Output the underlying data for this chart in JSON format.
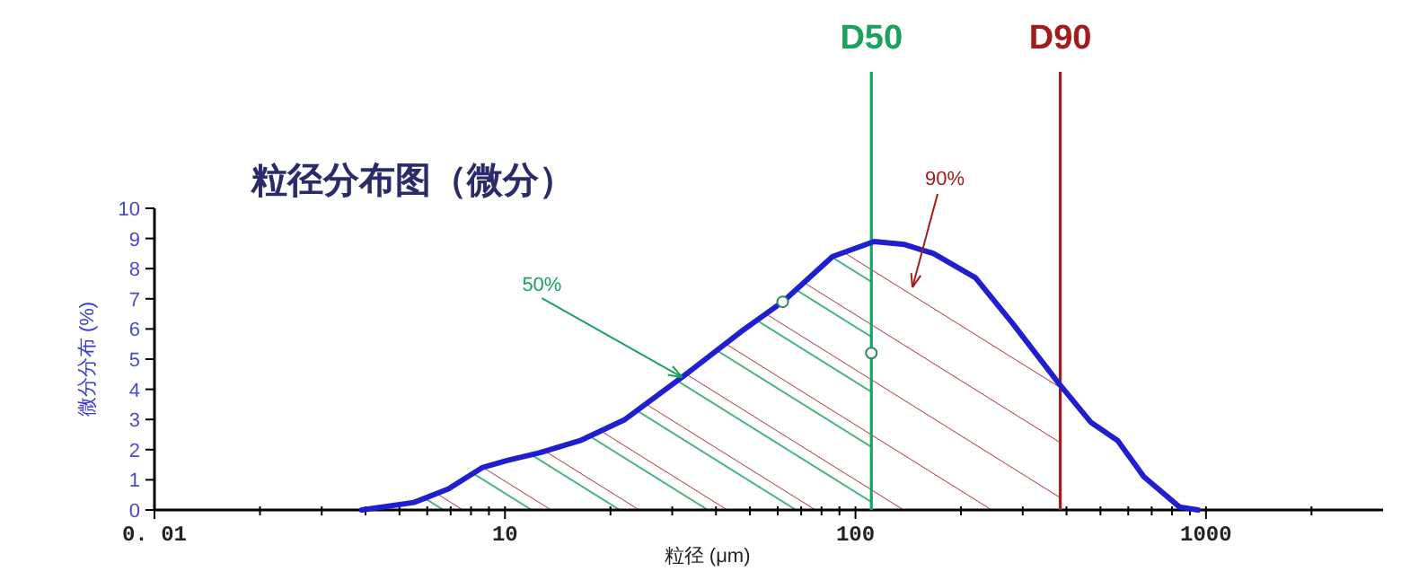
{
  "chart_data": {
    "type": "line",
    "title": "粒径分布图（微分）",
    "xlabel": "粒径 (μm)",
    "ylabel": "微分分布 (%)",
    "log": "x",
    "xlim": [
      1,
      3200
    ],
    "ylim": [
      0,
      10
    ],
    "xticks": [
      {
        "value": 1,
        "label": "0. 01"
      },
      {
        "value": 2,
        "label": null
      },
      {
        "value": 3,
        "label": null
      },
      {
        "value": 4,
        "label": null
      },
      {
        "value": 5,
        "label": null
      },
      {
        "value": 6,
        "label": null
      },
      {
        "value": 7,
        "label": null
      },
      {
        "value": 8,
        "label": null
      },
      {
        "value": 9,
        "label": null
      },
      10,
      {
        "value": 20,
        "label": null
      },
      {
        "value": 30,
        "label": null
      },
      {
        "value": 40,
        "label": null
      },
      {
        "value": 50,
        "label": null
      },
      {
        "value": 60,
        "label": null
      },
      {
        "value": 70,
        "label": null
      },
      {
        "value": 80,
        "label": null
      },
      {
        "value": 90,
        "label": null
      },
      100,
      {
        "value": 200,
        "label": null
      },
      {
        "value": 300,
        "label": null
      },
      {
        "value": 400,
        "label": null
      },
      {
        "value": 500,
        "label": null
      },
      {
        "value": 600,
        "label": null
      },
      {
        "value": 700,
        "label": null
      },
      {
        "value": 800,
        "label": null
      },
      {
        "value": 900,
        "label": null
      },
      1000,
      {
        "value": 2000,
        "label": null
      }
    ],
    "yticks": [
      0,
      1,
      2,
      3,
      4,
      5,
      6,
      7,
      8,
      9,
      10
    ],
    "grid": false,
    "series": [
      {
        "color": "#1f1fd0",
        "marker": "none",
        "x": [
          3.9,
          5.5,
          6.9,
          8.6,
          10.2,
          12.6,
          16.4,
          22,
          32,
          47,
          62,
          86,
          113,
          138,
          167,
          220,
          280,
          380,
          470,
          560,
          665,
          840,
          950
        ],
        "values": [
          0,
          0.25,
          0.7,
          1.4,
          1.65,
          1.9,
          2.3,
          3.0,
          4.4,
          5.9,
          6.9,
          8.4,
          8.9,
          8.8,
          8.5,
          7.7,
          6.2,
          4.2,
          2.9,
          2.3,
          1.1,
          0.1,
          0
        ]
      },
      {
        "type": "scatter",
        "color": "#2a8a5a",
        "marker": "circle",
        "x": [
          62,
          111
        ],
        "values": [
          6.9,
          5.2
        ]
      }
    ],
    "ref_lines": [
      {
        "axis": "x",
        "value": 111,
        "label": "D50",
        "color": "#1aa260"
      },
      {
        "axis": "x",
        "value": 384,
        "label": "D90",
        "color": "#a31c1c"
      }
    ],
    "annotations": [
      {
        "text": "50%",
        "x": 32,
        "y": 4.4
      },
      "90%"
    ]
  }
}
